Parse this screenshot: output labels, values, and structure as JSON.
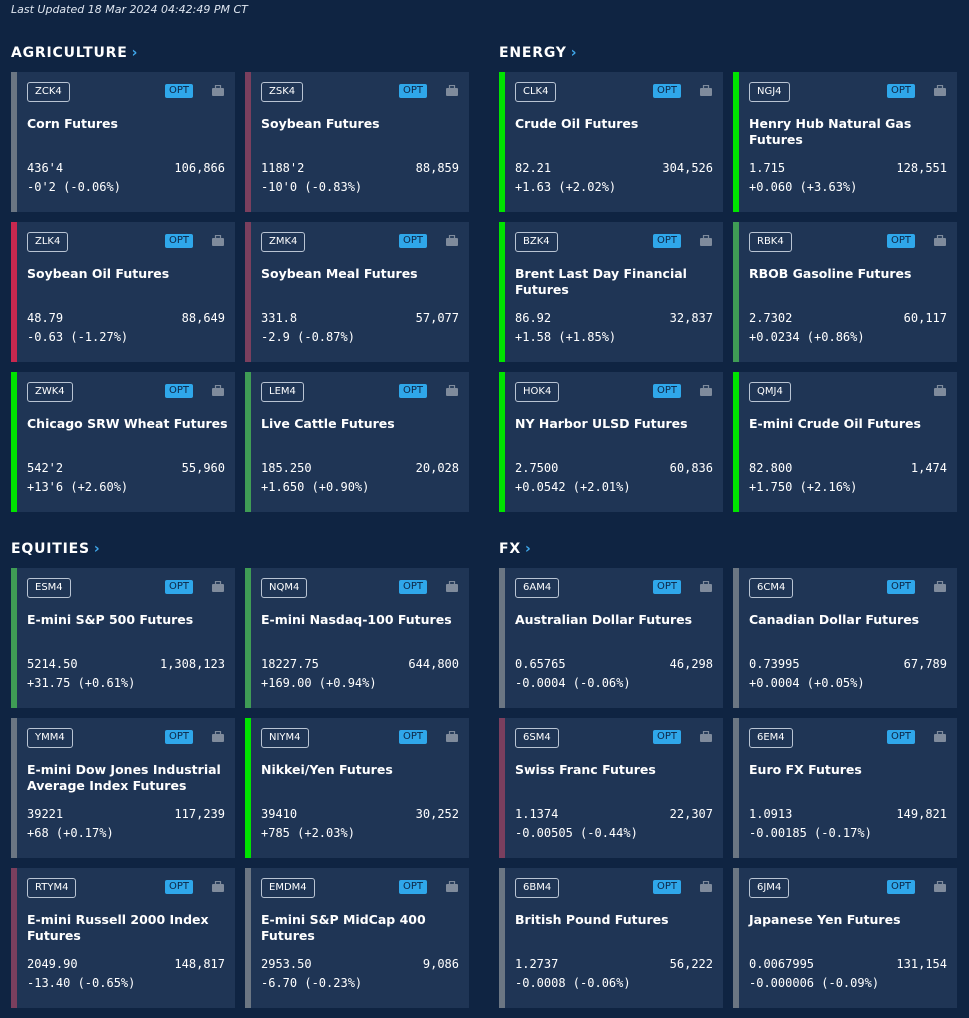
{
  "header": {
    "last_updated": "Last Updated 18 Mar 2024 04:42:49 PM CT"
  },
  "labels": {
    "opt": "OPT",
    "chevron": "›"
  },
  "colors": {
    "up": "#00e300",
    "up_soft": "#3f9c55",
    "down": "#c8284f",
    "down_soft": "#7a3f5e",
    "flat": "#6b7683"
  },
  "sections": [
    {
      "title": "AGRICULTURE",
      "cards": [
        {
          "code": "ZCK4",
          "name": "Corn Futures",
          "price": "436'4",
          "volume": "106,866",
          "change": "-0'2 (-0.06%)",
          "trend": "flat",
          "opt": true
        },
        {
          "code": "ZSK4",
          "name": "Soybean Futures",
          "price": "1188'2",
          "volume": "88,859",
          "change": "-10'0 (-0.83%)",
          "trend": "down_soft",
          "opt": true
        },
        {
          "code": "ZLK4",
          "name": "Soybean Oil Futures",
          "price": "48.79",
          "volume": "88,649",
          "change": "-0.63 (-1.27%)",
          "trend": "down",
          "opt": true
        },
        {
          "code": "ZMK4",
          "name": "Soybean Meal Futures",
          "price": "331.8",
          "volume": "57,077",
          "change": "-2.9 (-0.87%)",
          "trend": "down_soft",
          "opt": true
        },
        {
          "code": "ZWK4",
          "name": "Chicago SRW Wheat Futures",
          "price": "542'2",
          "volume": "55,960",
          "change": "+13'6 (+2.60%)",
          "trend": "up",
          "opt": true
        },
        {
          "code": "LEM4",
          "name": "Live Cattle Futures",
          "price": "185.250",
          "volume": "20,028",
          "change": "+1.650 (+0.90%)",
          "trend": "up_soft",
          "opt": true
        }
      ]
    },
    {
      "title": "ENERGY",
      "cards": [
        {
          "code": "CLK4",
          "name": "Crude Oil Futures",
          "price": "82.21",
          "volume": "304,526",
          "change": "+1.63 (+2.02%)",
          "trend": "up",
          "opt": true
        },
        {
          "code": "NGJ4",
          "name": "Henry Hub Natural Gas Futures",
          "price": "1.715",
          "volume": "128,551",
          "change": "+0.060 (+3.63%)",
          "trend": "up",
          "opt": true
        },
        {
          "code": "BZK4",
          "name": "Brent Last Day Financial Futures",
          "price": "86.92",
          "volume": "32,837",
          "change": "+1.58 (+1.85%)",
          "trend": "up",
          "opt": true
        },
        {
          "code": "RBK4",
          "name": "RBOB Gasoline Futures",
          "price": "2.7302",
          "volume": "60,117",
          "change": "+0.0234 (+0.86%)",
          "trend": "up_soft",
          "opt": true
        },
        {
          "code": "HOK4",
          "name": "NY Harbor ULSD Futures",
          "price": "2.7500",
          "volume": "60,836",
          "change": "+0.0542 (+2.01%)",
          "trend": "up",
          "opt": true
        },
        {
          "code": "QMJ4",
          "name": "E-mini Crude Oil Futures",
          "price": "82.800",
          "volume": "1,474",
          "change": "+1.750 (+2.16%)",
          "trend": "up",
          "opt": false
        }
      ]
    },
    {
      "title": "EQUITIES",
      "cards": [
        {
          "code": "ESM4",
          "name": "E-mini S&P 500 Futures",
          "price": "5214.50",
          "volume": "1,308,123",
          "change": "+31.75 (+0.61%)",
          "trend": "up_soft",
          "opt": true
        },
        {
          "code": "NQM4",
          "name": "E-mini Nasdaq-100 Futures",
          "price": "18227.75",
          "volume": "644,800",
          "change": "+169.00 (+0.94%)",
          "trend": "up_soft",
          "opt": true
        },
        {
          "code": "YMM4",
          "name": "E-mini Dow Jones Industrial Average Index Futures",
          "price": "39221",
          "volume": "117,239",
          "change": "+68 (+0.17%)",
          "trend": "flat",
          "opt": true
        },
        {
          "code": "NIYM4",
          "name": "Nikkei/Yen Futures",
          "price": "39410",
          "volume": "30,252",
          "change": "+785 (+2.03%)",
          "trend": "up",
          "opt": true
        },
        {
          "code": "RTYM4",
          "name": "E-mini  Russell 2000 Index Futures",
          "price": "2049.90",
          "volume": "148,817",
          "change": "-13.40 (-0.65%)",
          "trend": "down_soft",
          "opt": true
        },
        {
          "code": "EMDM4",
          "name": "E-mini S&P MidCap 400 Futures",
          "price": "2953.50",
          "volume": "9,086",
          "change": "-6.70 (-0.23%)",
          "trend": "flat",
          "opt": true
        }
      ]
    },
    {
      "title": "FX",
      "cards": [
        {
          "code": "6AM4",
          "name": "Australian Dollar Futures",
          "price": "0.65765",
          "volume": "46,298",
          "change": "-0.0004 (-0.06%)",
          "trend": "flat",
          "opt": true
        },
        {
          "code": "6CM4",
          "name": "Canadian Dollar Futures",
          "price": "0.73995",
          "volume": "67,789",
          "change": "+0.0004 (+0.05%)",
          "trend": "flat",
          "opt": true
        },
        {
          "code": "6SM4",
          "name": "Swiss Franc Futures",
          "price": "1.1374",
          "volume": "22,307",
          "change": "-0.00505 (-0.44%)",
          "trend": "down_soft",
          "opt": true
        },
        {
          "code": "6EM4",
          "name": "Euro FX Futures",
          "price": "1.0913",
          "volume": "149,821",
          "change": "-0.00185 (-0.17%)",
          "trend": "flat",
          "opt": true
        },
        {
          "code": "6BM4",
          "name": "British Pound Futures",
          "price": "1.2737",
          "volume": "56,222",
          "change": "-0.0008 (-0.06%)",
          "trend": "flat",
          "opt": true
        },
        {
          "code": "6JM4",
          "name": "Japanese Yen Futures",
          "price": "0.0067995",
          "volume": "131,154",
          "change": "-0.000006 (-0.09%)",
          "trend": "flat",
          "opt": true
        }
      ]
    }
  ]
}
